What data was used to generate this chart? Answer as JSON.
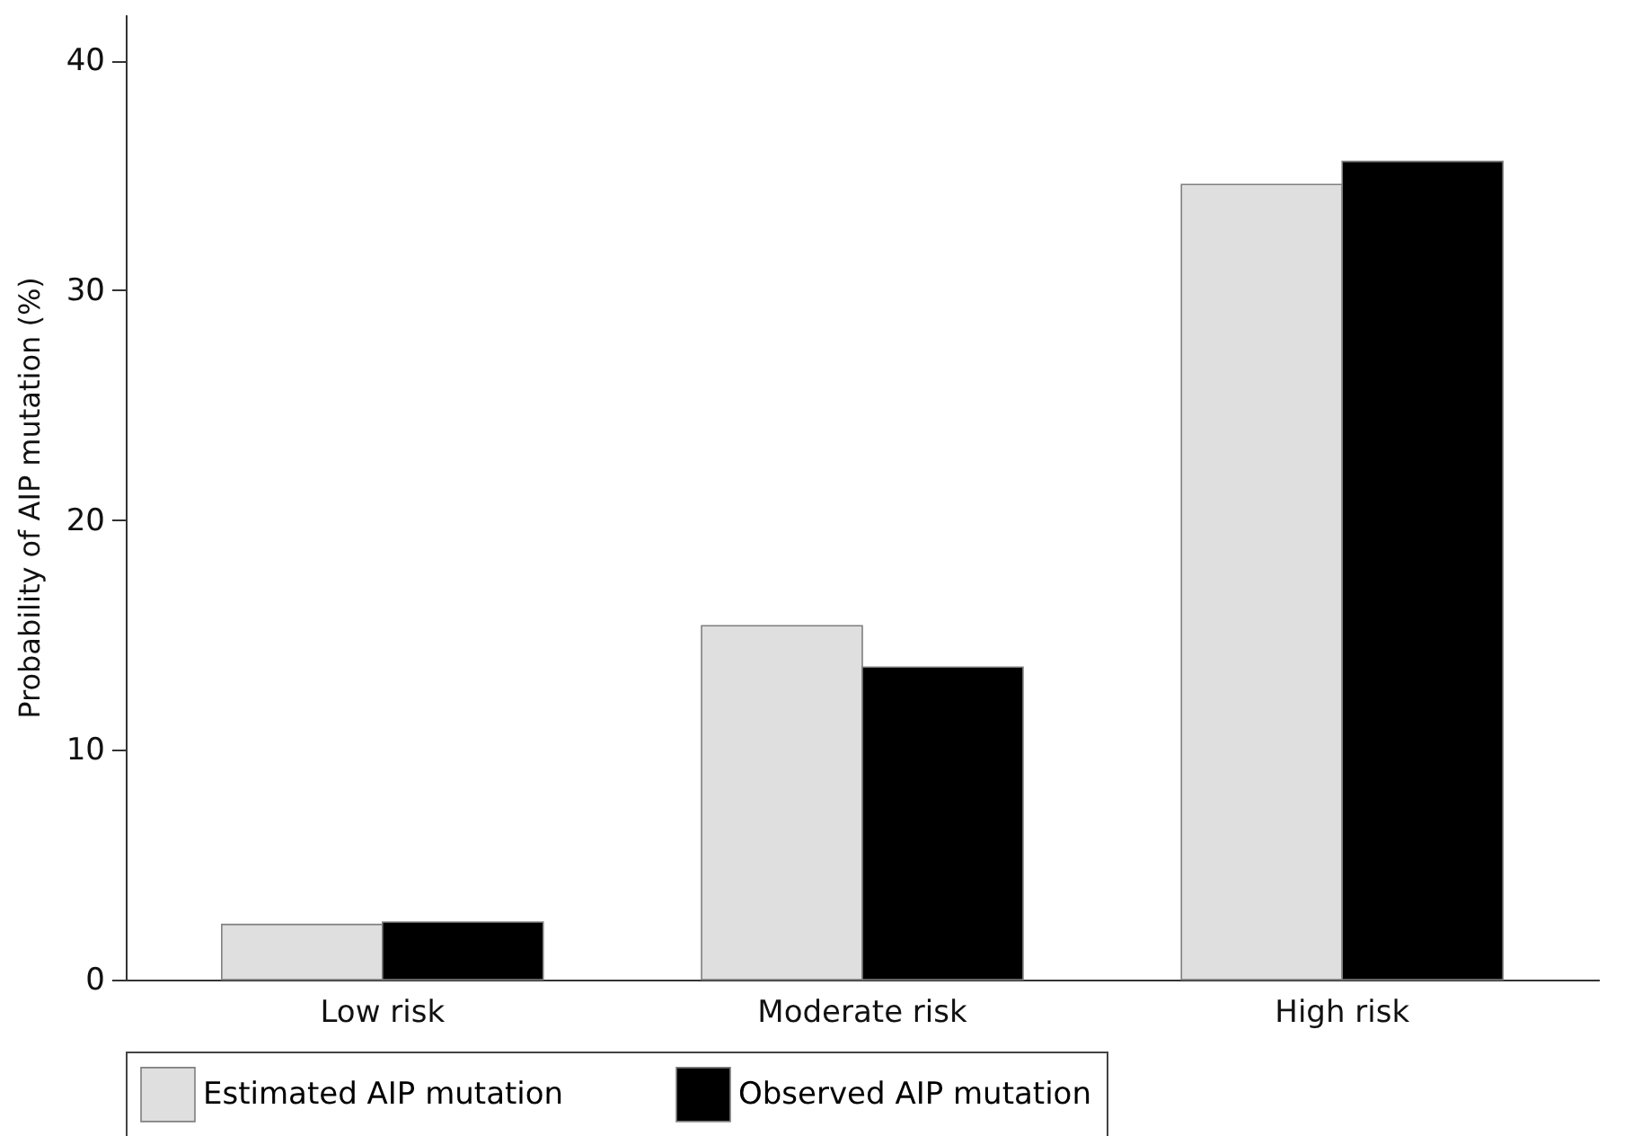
{
  "chart_data": {
    "type": "bar",
    "ylabel": "Probability of AIP mutation (%)",
    "categories": [
      "Low risk",
      "Moderate risk",
      "High risk"
    ],
    "series": [
      {
        "name": "Estimated AIP mutation",
        "color": "#dfdfdf",
        "values": [
          2.4,
          15.4,
          34.6
        ]
      },
      {
        "name": "Observed AIP mutation",
        "color": "#000000",
        "values": [
          2.5,
          13.6,
          35.6
        ]
      }
    ],
    "ylim": [
      0,
      42
    ],
    "yticks": [
      0,
      10,
      20,
      30,
      40
    ],
    "grid": false,
    "legend": "bottom"
  }
}
